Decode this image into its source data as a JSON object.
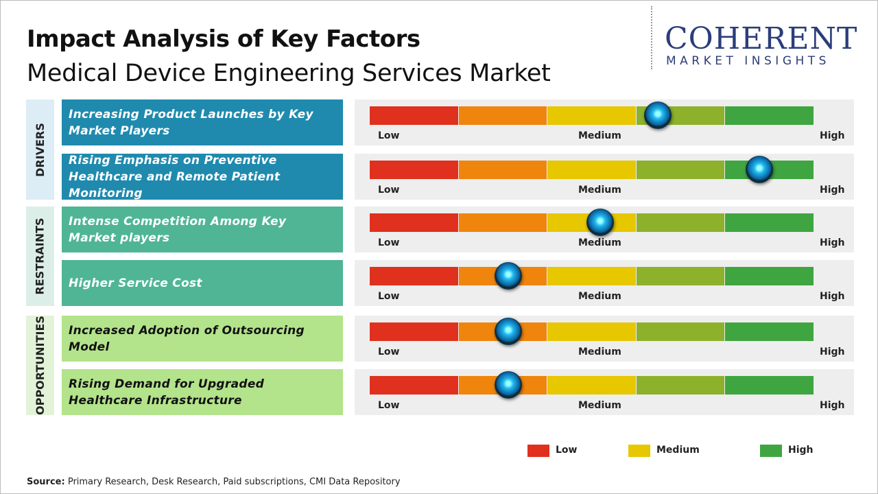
{
  "header": {
    "title": "Impact Analysis of Key Factors",
    "subtitle": "Medical Device Engineering Services Market"
  },
  "logo": {
    "name": "COHERENT",
    "tagline": "MARKET INSIGHTS"
  },
  "gauge": {
    "segment_colors": [
      "#e0301e",
      "#ef850c",
      "#e6c700",
      "#8db12a",
      "#3fa540"
    ],
    "labels": [
      "Low",
      "Medium",
      "High"
    ]
  },
  "groups": [
    {
      "label": "DRIVERS",
      "side_color": "#dcedf5",
      "box_color": "#1f8aae",
      "text_color": "#ffffff",
      "factors": [
        {
          "text": "Increasing Product Launches by Key Market Players",
          "level": 3.24
        },
        {
          "text": "Rising Emphasis on Preventive Healthcare and Remote Patient Monitoring",
          "level": 4.38
        }
      ]
    },
    {
      "label": "RESTRAINTS",
      "side_color": "#dbefe8",
      "box_color": "#4fb595",
      "text_color": "#ffffff",
      "factors": [
        {
          "text": "Intense Competition Among Key Market players",
          "level": 2.59
        },
        {
          "text": "Higher Service Cost",
          "level": 1.56
        }
      ]
    },
    {
      "label": "OPPORTUNITIES",
      "side_color": "#e3f3d8",
      "box_color": "#b3e38b",
      "text_color": "#111111",
      "factors": [
        {
          "text": "Increased Adoption of Outsourcing Model",
          "level": 1.56
        },
        {
          "text": "Rising Demand for Upgraded Healthcare Infrastructure",
          "level": 1.56
        }
      ]
    }
  ],
  "legend": [
    {
      "label": "Low",
      "color": "#e0301e"
    },
    {
      "label": "Medium",
      "color": "#e6c700"
    },
    {
      "label": "High",
      "color": "#3fa540"
    }
  ],
  "source": {
    "label": "Source:",
    "text": "Primary Research, Desk Research, Paid subscriptions, CMI Data Repository"
  }
}
